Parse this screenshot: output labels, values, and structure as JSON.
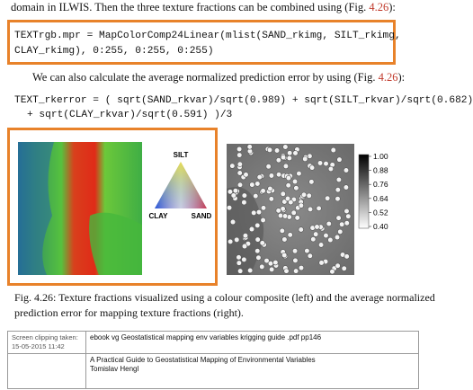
{
  "paragraph_1": {
    "text": "domain in ILWIS. Then the three texture fractions can be combined using (Fig. ",
    "ref": "4.26",
    "end": "):"
  },
  "code_1": [
    "TEXTrgb.mpr = MapColorComp24Linear(mlist(SAND_rkimg, SILT_rkimg,",
    "CLAY_rkimg), 0:255, 0:255, 0:255)"
  ],
  "paragraph_2": {
    "text": "We can also calculate the average normalized prediction error by using (Fig. ",
    "ref": "4.26",
    "end": "):"
  },
  "code_2": [
    "TEXT_rkerror = ( sqrt(SAND_rkvar)/sqrt(0.989) + sqrt(SILT_rkvar)/sqrt(0.682)",
    "+ sqrt(CLAY_rkvar)/sqrt(0.591) )/3"
  ],
  "figure": {
    "triangle_labels": {
      "top": "SILT",
      "left": "CLAY",
      "right": "SAND"
    },
    "colorbar_ticks": [
      "1.00",
      "0.88",
      "0.76",
      "0.64",
      "0.52",
      "0.40"
    ],
    "caption": [
      "Fig. 4.26: Texture fractions visualized using a colour composite (left) and the average normalized",
      "prediction error for mapping texture fractions (right)."
    ]
  },
  "clipping": {
    "taken_label": "Screen clipping taken:",
    "taken_date": "15-05-2015 11:42",
    "source": "ebook vg Geostatistical mapping env variables krigging guide .pdf pp146",
    "book_title": "A Practical Guide to Geostatistical Mapping of Environmental Variables",
    "author": "Tomislav Hengl"
  }
}
